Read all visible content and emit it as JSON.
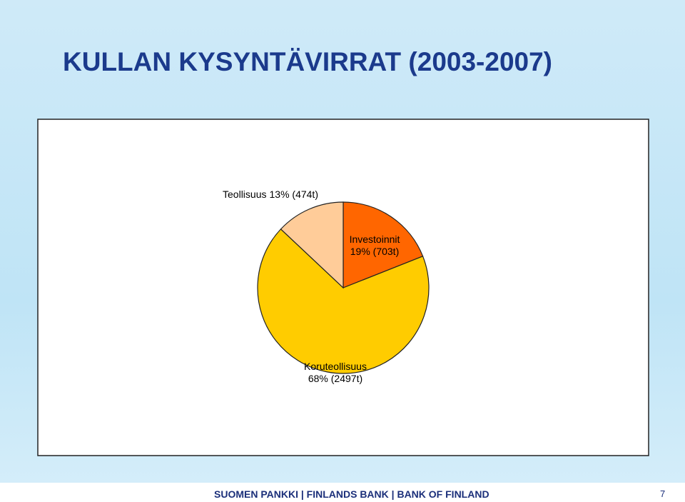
{
  "title": "KULLAN KYSYNTÄVIRRAT (2003-2007)",
  "chart_data": {
    "type": "pie",
    "categories": [
      "Investoinnit",
      "Koruteollisuus",
      "Teollisuus"
    ],
    "values": [
      19,
      68,
      13
    ],
    "value_labels": [
      "19% (703t)",
      "68% (2497t)",
      "13% (474t)"
    ],
    "colors": [
      "#ff6600",
      "#ffcc00",
      "#ffcc99"
    ]
  },
  "footer": {
    "text": "SUOMEN PANKKI | FINLANDS BANK | BANK OF FINLAND",
    "page": "7"
  }
}
